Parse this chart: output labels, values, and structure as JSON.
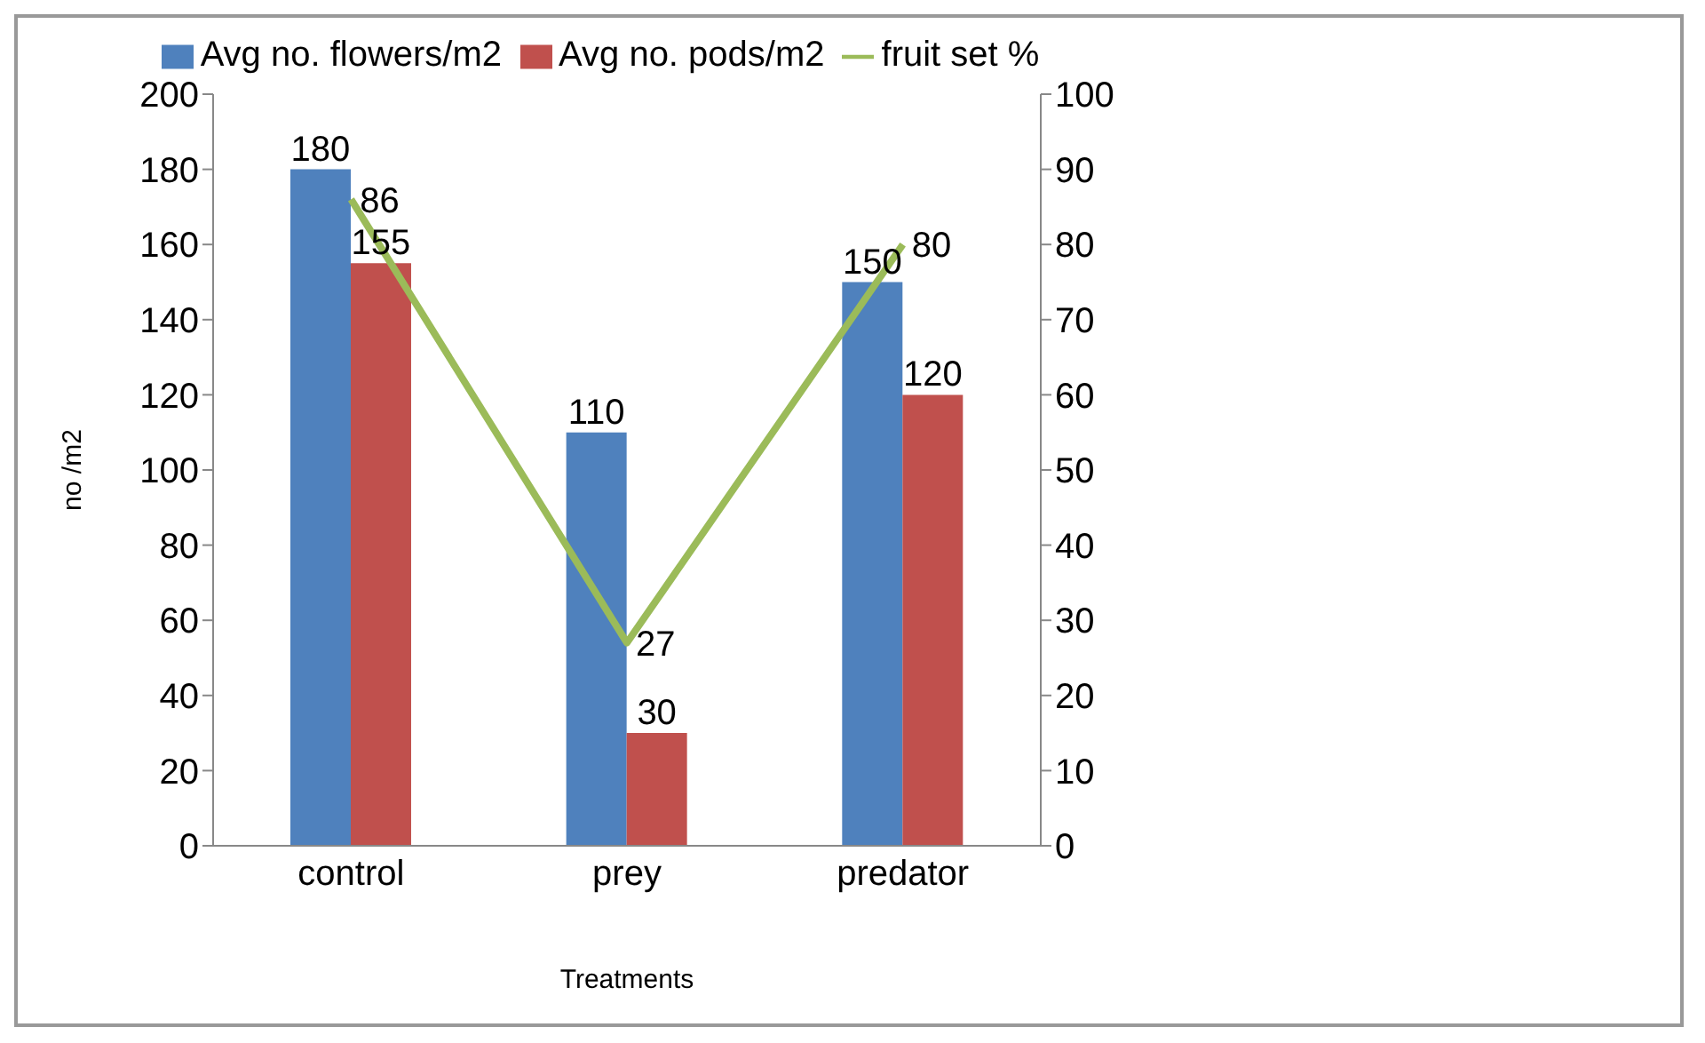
{
  "chart_data": {
    "type": "bar",
    "categories": [
      "control",
      "prey",
      "predator"
    ],
    "xlabel": "Treatments",
    "ylabel": "no /m2",
    "series": [
      {
        "name": "Avg no. flowers/m2",
        "color": "#4f81bd",
        "values": [
          180,
          110,
          150
        ]
      },
      {
        "name": "Avg no. pods/m2",
        "color": "#c0504d",
        "values": [
          155,
          30,
          120
        ]
      },
      {
        "name": "fruit set %",
        "type": "line",
        "axis": "y2",
        "color": "#9bbb59",
        "values": [
          86,
          27,
          80
        ]
      }
    ],
    "ylim": [
      0,
      200
    ],
    "yticks": [
      0,
      20,
      40,
      60,
      80,
      100,
      120,
      140,
      160,
      180,
      200
    ],
    "y2lim": [
      0,
      100
    ],
    "y2ticks": [
      0,
      10,
      20,
      30,
      40,
      50,
      60,
      70,
      80,
      90,
      100
    ],
    "data_labels": true,
    "legend": "top",
    "marker": "none",
    "line_style": "solid"
  }
}
